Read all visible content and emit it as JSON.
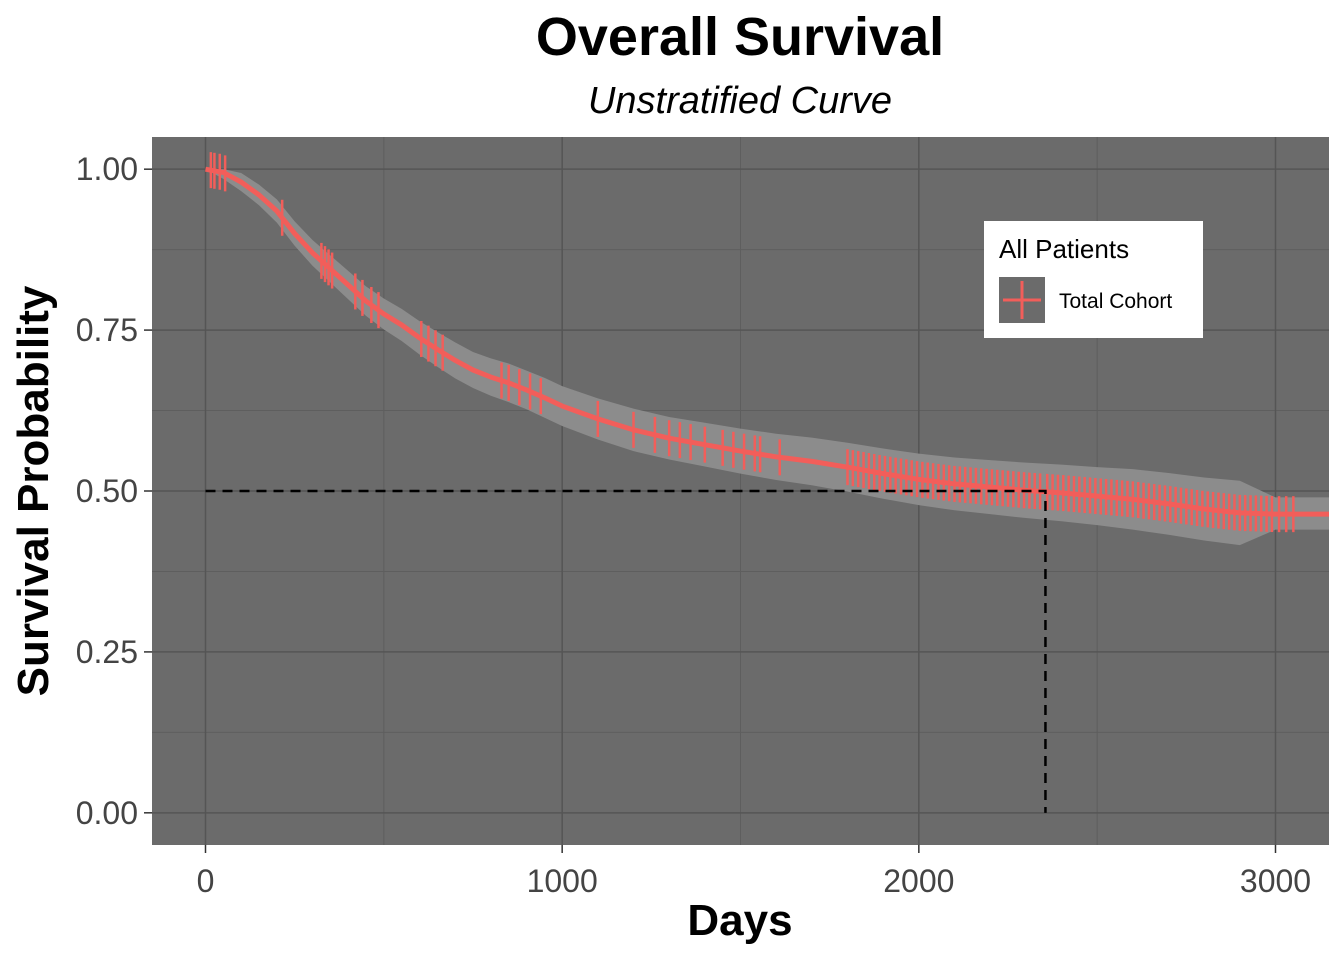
{
  "chart_data": {
    "type": "line",
    "title": "Overall Survival",
    "subtitle": "Unstratified Curve",
    "xlabel": "Days",
    "ylabel": "Survival Probability",
    "xlim": [
      -150,
      3150
    ],
    "ylim": [
      -0.05,
      1.05
    ],
    "x_ticks": [
      0,
      1000,
      2000,
      3000
    ],
    "x_tick_labels": [
      "0",
      "1000",
      "2000",
      "3000"
    ],
    "y_ticks": [
      0,
      0.25,
      0.5,
      0.75,
      1
    ],
    "y_tick_labels": [
      "0.00",
      "0.25",
      "0.50",
      "0.75",
      "1.00"
    ],
    "grid": true,
    "legend": {
      "title": "All Patients",
      "position": "top-right",
      "entries": [
        "Total Cohort"
      ]
    },
    "median": {
      "x": 2355,
      "y": 0.5
    },
    "series": [
      {
        "name": "Total Cohort",
        "color": "#F25E5A",
        "band_color": "#8C8C8C",
        "x": [
          0,
          50,
          100,
          150,
          200,
          250,
          300,
          350,
          400,
          450,
          500,
          550,
          600,
          650,
          700,
          750,
          800,
          850,
          900,
          950,
          1000,
          1100,
          1200,
          1300,
          1400,
          1500,
          1600,
          1700,
          1800,
          1900,
          2000,
          2100,
          2200,
          2300,
          2400,
          2500,
          2600,
          2700,
          2800,
          2900,
          3000,
          3150
        ],
        "y": [
          1.0,
          0.995,
          0.98,
          0.96,
          0.935,
          0.9,
          0.87,
          0.845,
          0.82,
          0.795,
          0.775,
          0.758,
          0.738,
          0.72,
          0.703,
          0.688,
          0.677,
          0.668,
          0.657,
          0.645,
          0.632,
          0.612,
          0.595,
          0.582,
          0.572,
          0.562,
          0.553,
          0.546,
          0.537,
          0.527,
          0.518,
          0.511,
          0.506,
          0.501,
          0.497,
          0.492,
          0.487,
          0.48,
          0.472,
          0.466,
          0.464,
          0.464
        ],
        "lower": [
          1.0,
          0.985,
          0.966,
          0.944,
          0.917,
          0.881,
          0.85,
          0.824,
          0.798,
          0.772,
          0.751,
          0.733,
          0.712,
          0.693,
          0.675,
          0.66,
          0.648,
          0.638,
          0.627,
          0.614,
          0.601,
          0.58,
          0.562,
          0.549,
          0.538,
          0.527,
          0.517,
          0.509,
          0.499,
          0.488,
          0.478,
          0.47,
          0.464,
          0.458,
          0.453,
          0.447,
          0.44,
          0.432,
          0.423,
          0.416,
          0.44,
          0.44
        ],
        "upper": [
          1.0,
          1.0,
          0.994,
          0.976,
          0.953,
          0.919,
          0.89,
          0.866,
          0.842,
          0.818,
          0.799,
          0.783,
          0.764,
          0.747,
          0.731,
          0.716,
          0.706,
          0.698,
          0.687,
          0.676,
          0.663,
          0.644,
          0.628,
          0.615,
          0.606,
          0.597,
          0.589,
          0.583,
          0.575,
          0.566,
          0.558,
          0.552,
          0.548,
          0.544,
          0.541,
          0.537,
          0.534,
          0.528,
          0.521,
          0.516,
          0.49,
          0.49
        ],
        "censor_x": [
          15,
          25,
          40,
          55,
          215,
          325,
          335,
          345,
          355,
          420,
          440,
          465,
          485,
          605,
          625,
          645,
          665,
          830,
          850,
          880,
          910,
          940,
          1100,
          1200,
          1260,
          1300,
          1330,
          1360,
          1400,
          1450,
          1480,
          1510,
          1540,
          1555,
          1610,
          1800,
          1815,
          1830,
          1845,
          1860,
          1875,
          1890,
          1905,
          1920,
          1935,
          1950,
          1965,
          1980,
          1995,
          2010,
          2025,
          2040,
          2055,
          2070,
          2085,
          2100,
          2115,
          2130,
          2145,
          2160,
          2175,
          2190,
          2205,
          2220,
          2235,
          2250,
          2265,
          2280,
          2295,
          2310,
          2325,
          2340,
          2360,
          2375,
          2390,
          2405,
          2420,
          2435,
          2450,
          2465,
          2480,
          2495,
          2510,
          2525,
          2540,
          2555,
          2570,
          2585,
          2600,
          2615,
          2630,
          2645,
          2660,
          2675,
          2690,
          2705,
          2720,
          2735,
          2750,
          2765,
          2780,
          2795,
          2810,
          2825,
          2840,
          2855,
          2870,
          2885,
          2900,
          2915,
          2930,
          2945,
          2960,
          2975,
          2990,
          3010,
          3030,
          3050
        ]
      }
    ]
  }
}
